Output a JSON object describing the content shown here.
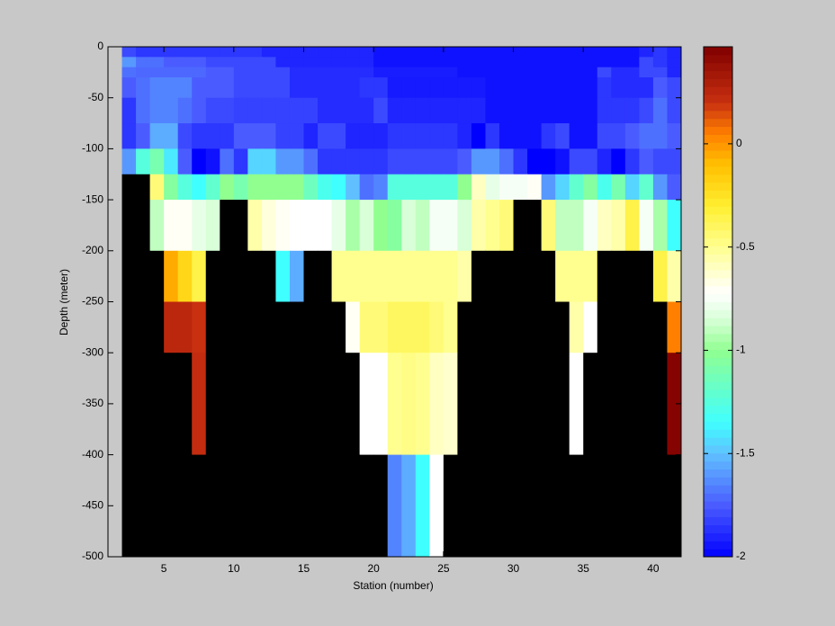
{
  "chart_data": {
    "type": "heatmap",
    "xlabel": "Station (number)",
    "ylabel": "Depth (meter)",
    "x": [
      2,
      3,
      4,
      5,
      6,
      7,
      8,
      9,
      10,
      11,
      12,
      13,
      14,
      15,
      16,
      17,
      18,
      19,
      20,
      21,
      22,
      23,
      24,
      25,
      26,
      27,
      28,
      29,
      30,
      31,
      32,
      33,
      34,
      35,
      36,
      37,
      38,
      39,
      40,
      41,
      42
    ],
    "y": [
      0,
      -10,
      -20,
      -30,
      -50,
      -75,
      -100,
      -125,
      -150,
      -200,
      -250,
      -300,
      -400,
      -500
    ],
    "z": [
      [
        -1.8,
        -1.85,
        -1.85,
        -1.85,
        -1.85,
        -1.85,
        -1.85,
        -1.85,
        -1.85,
        -1.85,
        -1.9,
        -1.9,
        -1.9,
        -1.9,
        -1.9,
        -1.9,
        -1.9,
        -1.9,
        -1.95,
        -1.95,
        -1.95,
        -1.95,
        -1.95,
        -1.95,
        -1.95,
        -1.95,
        -1.95,
        -1.95,
        -1.95,
        -1.95,
        -1.95,
        -1.95,
        -1.95,
        -1.95,
        -1.95,
        -1.95,
        -1.95,
        -1.9,
        -1.85,
        -1.9
      ],
      [
        -1.6,
        -1.7,
        -1.7,
        -1.75,
        -1.75,
        -1.75,
        -1.8,
        -1.8,
        -1.8,
        -1.8,
        -1.8,
        -1.9,
        -1.9,
        -1.9,
        -1.9,
        -1.9,
        -1.9,
        -1.9,
        -1.95,
        -1.95,
        -1.95,
        -1.95,
        -1.95,
        -1.95,
        -1.95,
        -1.95,
        -1.95,
        -1.95,
        -1.95,
        -1.95,
        -1.95,
        -1.95,
        -1.95,
        -1.95,
        -1.95,
        -1.95,
        -1.95,
        -1.8,
        -1.85,
        -1.9
      ],
      [
        -1.7,
        -1.72,
        -1.72,
        -1.72,
        -1.72,
        -1.72,
        -1.75,
        -1.75,
        -1.8,
        -1.8,
        -1.8,
        -1.8,
        -1.88,
        -1.88,
        -1.88,
        -1.88,
        -1.88,
        -1.88,
        -1.92,
        -1.92,
        -1.92,
        -1.92,
        -1.92,
        -1.92,
        -1.95,
        -1.95,
        -1.95,
        -1.95,
        -1.95,
        -1.95,
        -1.95,
        -1.95,
        -1.95,
        -1.95,
        -1.8,
        -1.88,
        -1.88,
        -1.8,
        -1.8,
        -1.9
      ],
      [
        -1.75,
        -1.7,
        -1.65,
        -1.65,
        -1.65,
        -1.75,
        -1.75,
        -1.75,
        -1.8,
        -1.8,
        -1.8,
        -1.8,
        -1.88,
        -1.88,
        -1.88,
        -1.88,
        -1.88,
        -1.85,
        -1.85,
        -1.93,
        -1.93,
        -1.93,
        -1.93,
        -1.93,
        -1.93,
        -1.93,
        -1.95,
        -1.95,
        -1.95,
        -1.95,
        -1.95,
        -1.95,
        -1.95,
        -1.95,
        -1.85,
        -1.88,
        -1.88,
        -1.88,
        -1.75,
        -1.8
      ],
      [
        -1.85,
        -1.7,
        -1.65,
        -1.65,
        -1.7,
        -1.75,
        -1.8,
        -1.8,
        -1.82,
        -1.82,
        -1.82,
        -1.82,
        -1.82,
        -1.82,
        -1.88,
        -1.88,
        -1.88,
        -1.88,
        -1.8,
        -1.9,
        -1.9,
        -1.9,
        -1.9,
        -1.9,
        -1.9,
        -1.9,
        -1.95,
        -1.95,
        -1.95,
        -1.95,
        -1.95,
        -1.95,
        -1.95,
        -1.95,
        -1.85,
        -1.85,
        -1.85,
        -1.8,
        -1.7,
        -1.8
      ],
      [
        -1.85,
        -1.75,
        -1.55,
        -1.55,
        -1.8,
        -1.85,
        -1.85,
        -1.85,
        -1.75,
        -1.75,
        -1.75,
        -1.82,
        -1.82,
        -1.9,
        -1.8,
        -1.8,
        -1.9,
        -1.9,
        -1.9,
        -1.85,
        -1.85,
        -1.85,
        -1.85,
        -1.85,
        -1.9,
        -2.0,
        -1.85,
        -1.95,
        -1.95,
        -1.95,
        -1.85,
        -1.8,
        -1.95,
        -1.95,
        -1.8,
        -1.8,
        -1.75,
        -1.7,
        -1.7,
        -1.75
      ],
      [
        -1.6,
        -1.25,
        -1.1,
        -1.4,
        -1.75,
        -2.0,
        -1.95,
        -1.7,
        -1.85,
        -1.45,
        -1.45,
        -1.6,
        -1.6,
        -1.7,
        -1.85,
        -1.85,
        -1.85,
        -1.85,
        -1.85,
        -1.8,
        -1.8,
        -1.8,
        -1.8,
        -1.8,
        -1.75,
        -1.6,
        -1.6,
        -1.7,
        -1.85,
        -2.0,
        -2.0,
        -1.95,
        -1.8,
        -1.8,
        -1.9,
        -2.0,
        -1.85,
        -1.75,
        -1.8,
        -1.8
      ],
      [
        null,
        null,
        -0.45,
        -1.05,
        -1.25,
        -1.35,
        -1.2,
        -1.0,
        -1.1,
        -1.0,
        -1.0,
        -1.0,
        -1.0,
        -1.15,
        -1.3,
        -1.35,
        -1.5,
        -1.7,
        -1.65,
        -1.25,
        -1.25,
        -1.25,
        -1.25,
        -1.25,
        -1.0,
        -0.6,
        -0.8,
        -0.75,
        -0.75,
        -0.7,
        -1.6,
        -1.45,
        -1.2,
        -1.05,
        -1.3,
        -1.1,
        -1.45,
        -1.2,
        -1.6,
        -1.75
      ],
      [
        null,
        null,
        -0.9,
        -0.7,
        -0.7,
        -0.8,
        -0.85,
        null,
        null,
        -0.55,
        -0.65,
        -0.7,
        -0.72,
        -0.72,
        -0.72,
        -0.8,
        -0.95,
        -0.85,
        -1.0,
        -1.05,
        -0.85,
        -0.9,
        -0.75,
        -0.75,
        -0.85,
        -0.55,
        -0.5,
        -0.45,
        null,
        null,
        -0.45,
        -0.9,
        -0.9,
        -0.75,
        -0.6,
        -0.55,
        -0.35,
        -0.75,
        -0.95,
        -1.35
      ],
      [
        null,
        null,
        null,
        -0.05,
        -0.2,
        -0.35,
        null,
        null,
        null,
        null,
        null,
        -1.35,
        -1.55,
        null,
        null,
        -0.5,
        -0.5,
        -0.5,
        -0.5,
        -0.5,
        -0.5,
        -0.5,
        -0.5,
        -0.5,
        -0.55,
        null,
        null,
        null,
        null,
        null,
        null,
        -0.5,
        -0.5,
        -0.5,
        null,
        null,
        null,
        null,
        -0.35,
        -0.55
      ],
      [
        null,
        null,
        null,
        0.25,
        0.25,
        0.2,
        null,
        null,
        null,
        null,
        null,
        null,
        null,
        null,
        null,
        null,
        -0.7,
        -0.45,
        -0.45,
        -0.4,
        -0.4,
        -0.4,
        -0.45,
        -0.5,
        null,
        null,
        null,
        null,
        null,
        null,
        null,
        null,
        -0.55,
        -0.72,
        null,
        null,
        null,
        null,
        null,
        0.05
      ],
      [
        null,
        null,
        null,
        null,
        null,
        0.22,
        null,
        null,
        null,
        null,
        null,
        null,
        null,
        null,
        null,
        null,
        null,
        -0.72,
        -0.72,
        -0.5,
        -0.48,
        -0.5,
        -0.6,
        -0.62,
        null,
        null,
        null,
        null,
        null,
        null,
        null,
        null,
        -0.72,
        null,
        null,
        null,
        null,
        null,
        null,
        0.45
      ],
      [
        null,
        null,
        null,
        null,
        null,
        null,
        null,
        null,
        null,
        null,
        null,
        null,
        null,
        null,
        null,
        null,
        null,
        null,
        null,
        -1.65,
        -1.55,
        -1.35,
        -0.72,
        null,
        null,
        null,
        null,
        null,
        null,
        null,
        null,
        null,
        null,
        null,
        null,
        null,
        null,
        null,
        null,
        null
      ]
    ],
    "xlim": [
      1,
      42
    ],
    "ylim": [
      -500,
      0
    ],
    "xticks": [
      5,
      10,
      15,
      20,
      25,
      30,
      35,
      40
    ],
    "yticks": [
      0,
      -50,
      -100,
      -150,
      -200,
      -250,
      -300,
      -350,
      -400,
      -450,
      -500
    ],
    "clim": [
      -2,
      0.47
    ],
    "cticks": [
      0,
      -0.5,
      -1,
      -1.5,
      -2
    ],
    "missing_color": "#000000",
    "colormap": [
      {
        "value": -2,
        "color": "#0000ff"
      },
      {
        "value": -1.75,
        "color": "#4a5cff"
      },
      {
        "value": -1.5,
        "color": "#60c0ff"
      },
      {
        "value": -1.35,
        "color": "#40ffff"
      },
      {
        "value": -1.0,
        "color": "#90ff90"
      },
      {
        "value": -0.85,
        "color": "#d8ffd8"
      },
      {
        "value": -0.72,
        "color": "#ffffff"
      },
      {
        "value": -0.5,
        "color": "#ffff90"
      },
      {
        "value": -0.3,
        "color": "#ffee30"
      },
      {
        "value": -0.1,
        "color": "#ffc000"
      },
      {
        "value": 0.05,
        "color": "#ff8000"
      },
      {
        "value": 0.2,
        "color": "#c83010"
      },
      {
        "value": 0.47,
        "color": "#800000"
      }
    ]
  }
}
